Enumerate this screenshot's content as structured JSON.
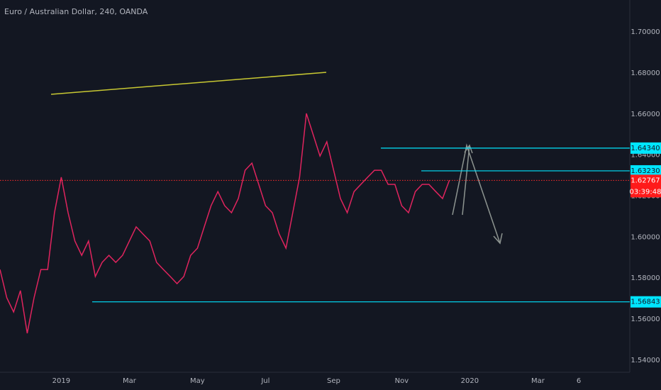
{
  "chart_data": {
    "type": "line",
    "title": "Euro / Australian Dollar, 240, OANDA",
    "categories": [
      null,
      null,
      null,
      null,
      null,
      null,
      null,
      null,
      null,
      "2019",
      null,
      null,
      null,
      null,
      null,
      null,
      null,
      null,
      null,
      "Mar",
      null,
      null,
      null,
      null,
      null,
      null,
      null,
      null,
      null,
      "May",
      null,
      null,
      null,
      null,
      null,
      null,
      null,
      null,
      null,
      "Jul",
      null,
      null,
      null,
      null,
      null,
      null,
      null,
      null,
      null,
      "Sep",
      null,
      null,
      null,
      null,
      null,
      null,
      null,
      null,
      null,
      "Nov",
      null,
      null,
      null,
      null,
      null,
      null,
      null,
      null,
      null,
      "2020",
      null,
      null,
      null,
      null,
      null,
      null,
      null,
      null,
      null,
      "Mar",
      null,
      null,
      null,
      null,
      null,
      "6",
      null,
      null,
      null,
      null,
      null,
      null,
      null
    ],
    "series": [
      {
        "name": "EURAUD",
        "color": "#e0245e",
        "values": [
          1.5842,
          1.5704,
          1.5635,
          1.5739,
          1.5531,
          1.5704,
          1.5842,
          1.5842,
          1.6119,
          1.6292,
          1.6119,
          1.5981,
          1.5911,
          1.5981,
          1.5808,
          1.5877,
          1.5911,
          1.5877,
          1.5911,
          1.5981,
          1.605,
          1.6015,
          1.5981,
          1.5877,
          1.5842,
          1.5808,
          1.5773,
          1.5808,
          1.5911,
          1.5946,
          1.605,
          1.6153,
          1.6222,
          1.6153,
          1.6119,
          1.6188,
          1.6326,
          1.6361,
          1.6257,
          1.6153,
          1.6119,
          1.6015,
          1.5946,
          1.6119,
          1.6292,
          1.6603,
          1.6499,
          1.6395,
          1.6465,
          1.6326,
          1.6188,
          1.6119,
          1.6222,
          1.6257,
          1.6292,
          1.6326,
          1.6326,
          1.6257,
          1.6257,
          1.6153,
          1.6119,
          1.6222,
          1.6257,
          1.6257,
          1.6222,
          1.6188,
          1.6277,
          null,
          null,
          null,
          null,
          null,
          null,
          null,
          null,
          null,
          null,
          null,
          null,
          null,
          null,
          null,
          null,
          null,
          null,
          null,
          null,
          null,
          null,
          null,
          null,
          null,
          null
        ]
      }
    ],
    "ylim": [
      1.5341,
      1.7156
    ],
    "yticks": [
      {
        "value": 1.7,
        "label": "1.70000"
      },
      {
        "value": 1.68,
        "label": "1.68000"
      },
      {
        "value": 1.66,
        "label": "1.66000"
      },
      {
        "value": 1.64,
        "label": "1.64000"
      },
      {
        "value": 1.62,
        "label": "1.62000"
      },
      {
        "value": 1.6,
        "label": "1.60000"
      },
      {
        "value": 1.58,
        "label": "1.58000"
      },
      {
        "value": 1.56,
        "label": "1.56000"
      },
      {
        "value": 1.54,
        "label": "1.54000"
      }
    ],
    "grid": false,
    "levels": [
      {
        "value": 1.6434,
        "label": "1.64340"
      },
      {
        "value": 1.6323,
        "label": "1.63230"
      },
      {
        "value": 1.56843,
        "label": "1.56843"
      }
    ],
    "last_price": {
      "value": 1.62767,
      "label": "1.62767"
    },
    "countdown": "03:39:48"
  }
}
